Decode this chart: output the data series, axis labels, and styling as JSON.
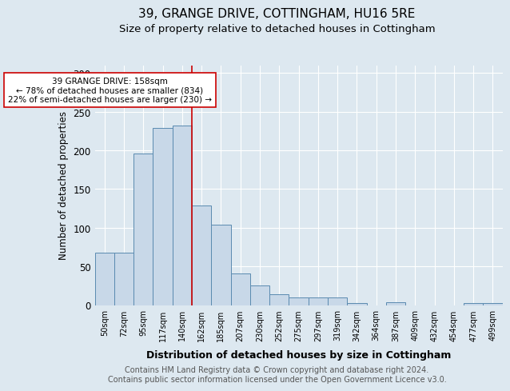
{
  "title": "39, GRANGE DRIVE, COTTINGHAM, HU16 5RE",
  "subtitle": "Size of property relative to detached houses in Cottingham",
  "xlabel": "Distribution of detached houses by size in Cottingham",
  "ylabel": "Number of detached properties",
  "bar_labels": [
    "50sqm",
    "72sqm",
    "95sqm",
    "117sqm",
    "140sqm",
    "162sqm",
    "185sqm",
    "207sqm",
    "230sqm",
    "252sqm",
    "275sqm",
    "297sqm",
    "319sqm",
    "342sqm",
    "364sqm",
    "387sqm",
    "409sqm",
    "432sqm",
    "454sqm",
    "477sqm",
    "499sqm"
  ],
  "bar_values": [
    68,
    68,
    196,
    229,
    232,
    129,
    104,
    41,
    25,
    14,
    10,
    10,
    10,
    3,
    0,
    4,
    0,
    0,
    0,
    3,
    3
  ],
  "bar_color": "#c8d8e8",
  "bar_edge_color": "#5a8ab0",
  "property_line_color": "#cc0000",
  "property_line_index": 4.5,
  "annotation_text": "39 GRANGE DRIVE: 158sqm\n← 78% of detached houses are smaller (834)\n22% of semi-detached houses are larger (230) →",
  "annotation_box_color": "#ffffff",
  "annotation_box_edge": "#cc0000",
  "ylim": [
    0,
    310
  ],
  "yticks": [
    0,
    50,
    100,
    150,
    200,
    250,
    300
  ],
  "footer": "Contains HM Land Registry data © Crown copyright and database right 2024.\nContains public sector information licensed under the Open Government Licence v3.0.",
  "bg_color": "#dde8f0",
  "grid_color": "#ffffff",
  "title_fontsize": 11,
  "subtitle_fontsize": 9.5,
  "footer_fontsize": 7
}
